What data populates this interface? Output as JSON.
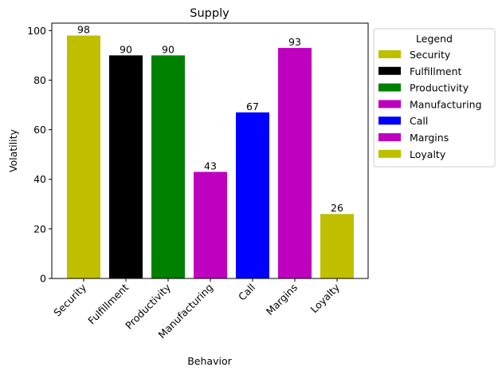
{
  "chart_data": {
    "type": "bar",
    "title": "Supply",
    "xlabel": "Behavior",
    "ylabel": "Volatility",
    "categories": [
      "Security",
      "Fulfillment",
      "Productivity",
      "Manufacturing",
      "Call",
      "Margins",
      "Loyalty"
    ],
    "values": [
      98,
      90,
      90,
      43,
      67,
      93,
      26
    ],
    "colors": [
      "#bfbf00",
      "#000000",
      "#008000",
      "#bf00bf",
      "#0000ff",
      "#bf00bf",
      "#bfbf00"
    ],
    "ylim": [
      0,
      103
    ],
    "yticks": [
      0,
      20,
      40,
      60,
      80,
      100
    ],
    "grid": false,
    "legend": {
      "title": "Legend",
      "placement": "outside-right",
      "entries": [
        "Security",
        "Fulfillment",
        "Productivity",
        "Manufacturing",
        "Call",
        "Margins",
        "Loyalty"
      ]
    }
  }
}
